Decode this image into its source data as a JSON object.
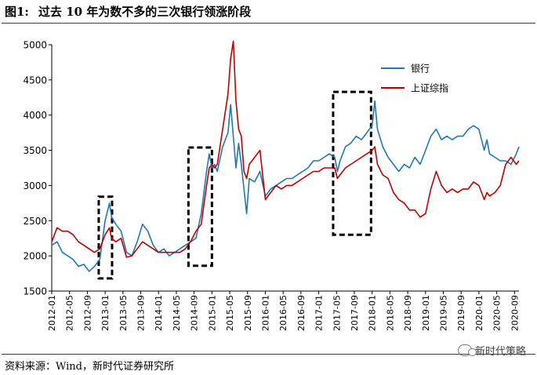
{
  "figure": {
    "label": "图1:",
    "title": "过去 10 年为数不多的三次银行领涨阶段"
  },
  "source": "资料来源：Wind，新时代证券研究所",
  "watermark": "新时代策略",
  "chart_data": {
    "type": "line",
    "ylim": [
      1500,
      5000
    ],
    "yticks": [
      1500,
      2000,
      2500,
      3000,
      3500,
      4000,
      4500,
      5000
    ],
    "xlim": [
      2012.0,
      2020.75
    ],
    "xtick_labels": [
      "2012-01",
      "2012-05",
      "2012-09",
      "2013-01",
      "2013-05",
      "2013-09",
      "2014-01",
      "2014-05",
      "2014-09",
      "2015-01",
      "2015-05",
      "2015-09",
      "2016-01",
      "2016-05",
      "2016-09",
      "2017-01",
      "2017-05",
      "2017-09",
      "2018-01",
      "2018-05",
      "2018-09",
      "2019-01",
      "2019-05",
      "2019-09",
      "2020-01",
      "2020-05",
      "2020-09"
    ],
    "legend_position": "top-right",
    "grid": false,
    "series": [
      {
        "name": "银行",
        "color": "#1f77b4",
        "points": [
          [
            2012.0,
            2150
          ],
          [
            2012.1,
            2200
          ],
          [
            2012.2,
            2050
          ],
          [
            2012.3,
            2000
          ],
          [
            2012.4,
            1950
          ],
          [
            2012.5,
            1850
          ],
          [
            2012.6,
            1880
          ],
          [
            2012.7,
            1780
          ],
          [
            2012.8,
            1850
          ],
          [
            2012.9,
            1950
          ],
          [
            2013.0,
            2500
          ],
          [
            2013.08,
            2750
          ],
          [
            2013.12,
            2550
          ],
          [
            2013.2,
            2450
          ],
          [
            2013.3,
            2350
          ],
          [
            2013.4,
            2050
          ],
          [
            2013.5,
            2000
          ],
          [
            2013.6,
            2200
          ],
          [
            2013.7,
            2450
          ],
          [
            2013.8,
            2350
          ],
          [
            2013.9,
            2150
          ],
          [
            2014.0,
            2050
          ],
          [
            2014.1,
            2100
          ],
          [
            2014.2,
            2000
          ],
          [
            2014.3,
            2050
          ],
          [
            2014.4,
            2100
          ],
          [
            2014.5,
            2150
          ],
          [
            2014.6,
            2200
          ],
          [
            2014.7,
            2250
          ],
          [
            2014.8,
            2600
          ],
          [
            2014.9,
            3200
          ],
          [
            2014.95,
            3450
          ],
          [
            2015.0,
            3250
          ],
          [
            2015.05,
            3300
          ],
          [
            2015.1,
            3200
          ],
          [
            2015.2,
            3550
          ],
          [
            2015.3,
            3750
          ],
          [
            2015.35,
            4150
          ],
          [
            2015.4,
            3700
          ],
          [
            2015.45,
            3250
          ],
          [
            2015.5,
            3600
          ],
          [
            2015.55,
            3300
          ],
          [
            2015.6,
            2950
          ],
          [
            2015.65,
            2600
          ],
          [
            2015.7,
            3100
          ],
          [
            2015.8,
            3050
          ],
          [
            2015.9,
            3200
          ],
          [
            2016.0,
            2850
          ],
          [
            2016.1,
            2950
          ],
          [
            2016.2,
            3000
          ],
          [
            2016.3,
            3050
          ],
          [
            2016.4,
            3100
          ],
          [
            2016.5,
            3100
          ],
          [
            2016.6,
            3150
          ],
          [
            2016.7,
            3200
          ],
          [
            2016.8,
            3250
          ],
          [
            2016.9,
            3350
          ],
          [
            2017.0,
            3350
          ],
          [
            2017.1,
            3400
          ],
          [
            2017.2,
            3450
          ],
          [
            2017.3,
            3400
          ],
          [
            2017.35,
            3200
          ],
          [
            2017.4,
            3350
          ],
          [
            2017.5,
            3550
          ],
          [
            2017.6,
            3600
          ],
          [
            2017.7,
            3700
          ],
          [
            2017.8,
            3650
          ],
          [
            2017.9,
            3750
          ],
          [
            2018.0,
            3850
          ],
          [
            2018.05,
            4200
          ],
          [
            2018.1,
            3800
          ],
          [
            2018.2,
            3550
          ],
          [
            2018.3,
            3400
          ],
          [
            2018.4,
            3300
          ],
          [
            2018.5,
            3200
          ],
          [
            2018.6,
            3300
          ],
          [
            2018.7,
            3250
          ],
          [
            2018.8,
            3400
          ],
          [
            2018.9,
            3300
          ],
          [
            2019.0,
            3500
          ],
          [
            2019.1,
            3700
          ],
          [
            2019.2,
            3800
          ],
          [
            2019.3,
            3650
          ],
          [
            2019.4,
            3700
          ],
          [
            2019.5,
            3650
          ],
          [
            2019.6,
            3700
          ],
          [
            2019.7,
            3700
          ],
          [
            2019.8,
            3800
          ],
          [
            2019.9,
            3850
          ],
          [
            2020.0,
            3800
          ],
          [
            2020.1,
            3500
          ],
          [
            2020.15,
            3650
          ],
          [
            2020.2,
            3450
          ],
          [
            2020.3,
            3400
          ],
          [
            2020.4,
            3350
          ],
          [
            2020.5,
            3350
          ],
          [
            2020.6,
            3300
          ],
          [
            2020.7,
            3450
          ],
          [
            2020.75,
            3550
          ]
        ]
      },
      {
        "name": "上证综指",
        "color": "#c00000",
        "points": [
          [
            2012.0,
            2200
          ],
          [
            2012.1,
            2400
          ],
          [
            2012.2,
            2350
          ],
          [
            2012.3,
            2350
          ],
          [
            2012.4,
            2300
          ],
          [
            2012.5,
            2200
          ],
          [
            2012.6,
            2150
          ],
          [
            2012.7,
            2100
          ],
          [
            2012.8,
            2050
          ],
          [
            2012.9,
            2100
          ],
          [
            2013.0,
            2300
          ],
          [
            2013.08,
            2400
          ],
          [
            2013.12,
            2250
          ],
          [
            2013.2,
            2200
          ],
          [
            2013.3,
            2250
          ],
          [
            2013.4,
            1980
          ],
          [
            2013.5,
            2000
          ],
          [
            2013.6,
            2100
          ],
          [
            2013.7,
            2200
          ],
          [
            2013.8,
            2150
          ],
          [
            2013.9,
            2100
          ],
          [
            2014.0,
            2050
          ],
          [
            2014.1,
            2050
          ],
          [
            2014.2,
            2050
          ],
          [
            2014.3,
            2050
          ],
          [
            2014.4,
            2050
          ],
          [
            2014.5,
            2100
          ],
          [
            2014.6,
            2200
          ],
          [
            2014.7,
            2350
          ],
          [
            2014.8,
            2450
          ],
          [
            2014.9,
            3000
          ],
          [
            2014.95,
            3250
          ],
          [
            2015.0,
            3300
          ],
          [
            2015.05,
            3250
          ],
          [
            2015.1,
            3300
          ],
          [
            2015.2,
            3800
          ],
          [
            2015.3,
            4300
          ],
          [
            2015.35,
            4800
          ],
          [
            2015.4,
            5050
          ],
          [
            2015.45,
            4200
          ],
          [
            2015.5,
            3800
          ],
          [
            2015.55,
            3700
          ],
          [
            2015.6,
            3200
          ],
          [
            2015.65,
            3100
          ],
          [
            2015.7,
            3300
          ],
          [
            2015.8,
            3400
          ],
          [
            2015.9,
            3500
          ],
          [
            2016.0,
            2800
          ],
          [
            2016.1,
            2900
          ],
          [
            2016.2,
            3000
          ],
          [
            2016.3,
            2950
          ],
          [
            2016.4,
            3000
          ],
          [
            2016.5,
            3000
          ],
          [
            2016.6,
            3050
          ],
          [
            2016.7,
            3100
          ],
          [
            2016.8,
            3150
          ],
          [
            2016.9,
            3200
          ],
          [
            2017.0,
            3200
          ],
          [
            2017.1,
            3250
          ],
          [
            2017.2,
            3250
          ],
          [
            2017.3,
            3250
          ],
          [
            2017.35,
            3100
          ],
          [
            2017.4,
            3150
          ],
          [
            2017.5,
            3250
          ],
          [
            2017.6,
            3300
          ],
          [
            2017.7,
            3350
          ],
          [
            2017.8,
            3400
          ],
          [
            2017.9,
            3450
          ],
          [
            2018.0,
            3500
          ],
          [
            2018.05,
            3550
          ],
          [
            2018.1,
            3300
          ],
          [
            2018.2,
            3150
          ],
          [
            2018.3,
            3100
          ],
          [
            2018.4,
            2900
          ],
          [
            2018.5,
            2800
          ],
          [
            2018.6,
            2750
          ],
          [
            2018.7,
            2650
          ],
          [
            2018.8,
            2650
          ],
          [
            2018.9,
            2550
          ],
          [
            2019.0,
            2600
          ],
          [
            2019.1,
            2950
          ],
          [
            2019.2,
            3200
          ],
          [
            2019.3,
            3000
          ],
          [
            2019.4,
            2900
          ],
          [
            2019.5,
            2950
          ],
          [
            2019.6,
            2900
          ],
          [
            2019.7,
            2950
          ],
          [
            2019.8,
            2950
          ],
          [
            2019.9,
            3050
          ],
          [
            2020.0,
            3000
          ],
          [
            2020.1,
            2800
          ],
          [
            2020.15,
            2900
          ],
          [
            2020.2,
            2850
          ],
          [
            2020.3,
            2900
          ],
          [
            2020.4,
            3000
          ],
          [
            2020.5,
            3300
          ],
          [
            2020.6,
            3400
          ],
          [
            2020.7,
            3300
          ],
          [
            2020.75,
            3350
          ]
        ]
      }
    ],
    "highlight_boxes": [
      {
        "x0": 2012.88,
        "x1": 2013.13,
        "y0": 1680,
        "y1": 2840
      },
      {
        "x0": 2014.56,
        "x1": 2015.0,
        "y0": 1860,
        "y1": 3540
      },
      {
        "x0": 2017.27,
        "x1": 2017.98,
        "y0": 2300,
        "y1": 4330
      }
    ]
  }
}
